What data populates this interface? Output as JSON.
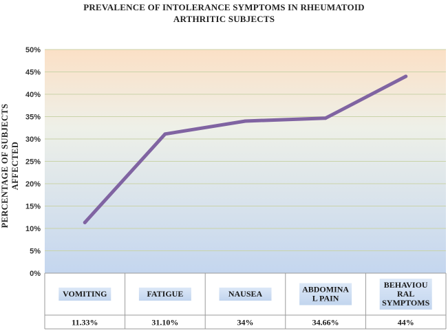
{
  "chart_data": {
    "type": "line",
    "title_lines": [
      "PREVALENCE OF  INTOLERANCE SYMPTOMS IN RHEUMATOID",
      "ARTHRITIC SUBJECTS"
    ],
    "ylabel": "PERCENTAGE OF  SUBJECTS AFFECTED",
    "xlabel": "",
    "ylim": [
      0,
      50
    ],
    "yticks": [
      0,
      5,
      10,
      15,
      20,
      25,
      30,
      35,
      40,
      45,
      50
    ],
    "ytick_labels": [
      "0%",
      "5%",
      "10%",
      "15%",
      "20%",
      "25%",
      "30%",
      "35%",
      "40%",
      "45%",
      "50%"
    ],
    "grid": true,
    "categories": [
      [
        "VOMITING"
      ],
      [
        "FATIGUE"
      ],
      [
        "NAUSEA"
      ],
      [
        "ABDOMINA",
        "L PAIN"
      ],
      [
        "BEHAVIOU",
        "RAL",
        "SYMPTOMS"
      ]
    ],
    "values": [
      11.33,
      31.1,
      34,
      34.66,
      44
    ],
    "value_labels": [
      "11.33%",
      "31.10%",
      "34%",
      "34.66%",
      "44%"
    ],
    "line_color": "#8064a2"
  }
}
